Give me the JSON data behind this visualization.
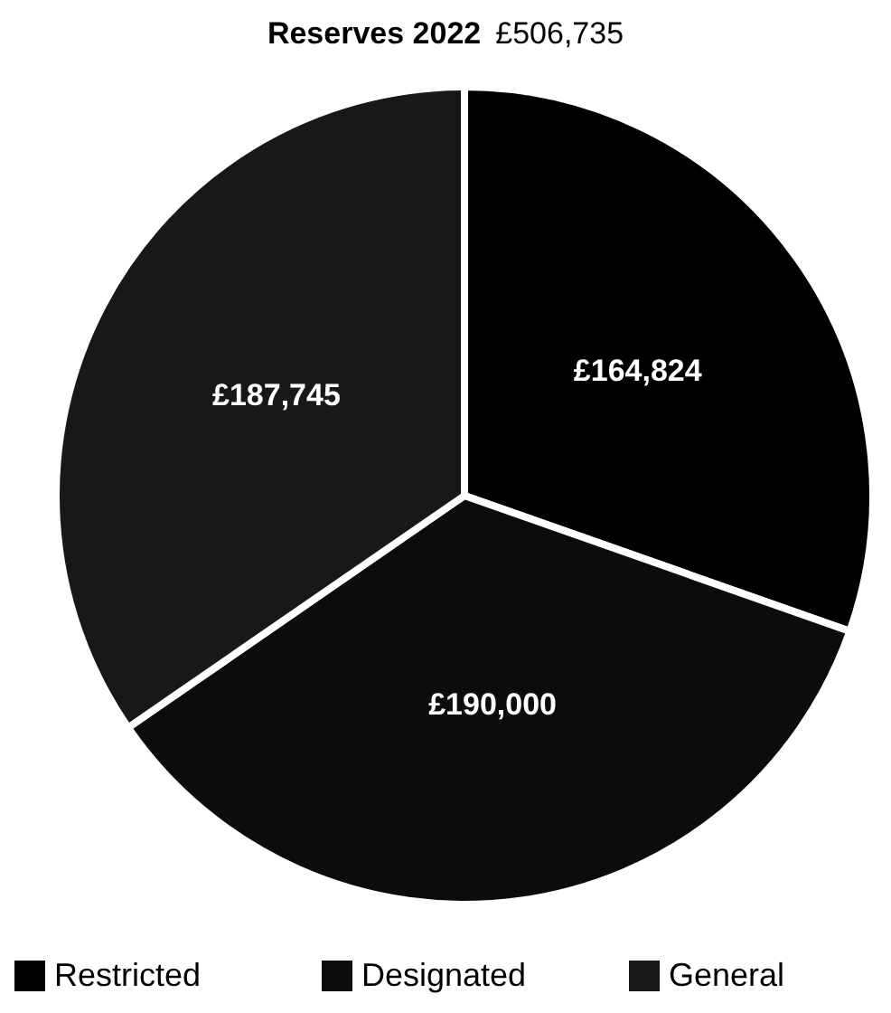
{
  "chart_data": {
    "type": "pie",
    "title": "Reserves 2022",
    "subtitle": "£506,735",
    "categories": [
      "Restricted",
      "Designated",
      "General"
    ],
    "values": [
      164824,
      190000,
      187745
    ],
    "value_labels": [
      "£164,824",
      "£190,000",
      "£187,745"
    ],
    "colors": [
      "#000000",
      "#0c0c0c",
      "#181818"
    ],
    "legend": "bottom"
  }
}
